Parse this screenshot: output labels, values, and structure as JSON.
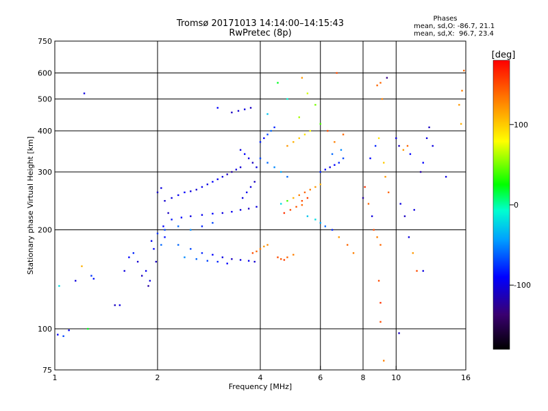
{
  "title": {
    "line1": "Tromsø 20171013 14:14:00–14:15:43",
    "line2": "RwPretec (8p)"
  },
  "phase_box": {
    "heading": "Phases",
    "line_o": "mean, sd,O: -86.7, 21.1",
    "line_x": "mean, sd,X:  96.7, 23.4"
  },
  "colorbar": {
    "label": "[deg]",
    "ticks": [
      {
        "value": 100,
        "label": "100"
      },
      {
        "value": 0,
        "label": "0"
      },
      {
        "value": -100,
        "label": "-100"
      }
    ],
    "range": [
      -180,
      180
    ]
  },
  "chart_data": {
    "type": "scatter",
    "xlabel": "Frequency [MHz]",
    "ylabel": "Stationary phase Virtual Height [km]",
    "xscale": "log",
    "yscale": "log",
    "xlim": [
      1,
      16
    ],
    "ylim": [
      75,
      750
    ],
    "xticks": [
      {
        "value": 1,
        "label": "1"
      },
      {
        "value": 2,
        "label": "2"
      },
      {
        "value": 4,
        "label": "4"
      },
      {
        "value": 6,
        "label": "6"
      },
      {
        "value": 8,
        "label": "8"
      },
      {
        "value": 10,
        "label": "10"
      },
      {
        "value": 16,
        "label": "16"
      }
    ],
    "xgrid": [
      2,
      4,
      6,
      8,
      10
    ],
    "yticks": [
      {
        "value": 75,
        "label": "75"
      },
      {
        "value": 100,
        "label": "100"
      },
      {
        "value": 200,
        "label": "200"
      },
      {
        "value": 300,
        "label": "300"
      },
      {
        "value": 400,
        "label": "400"
      },
      {
        "value": 500,
        "label": "500"
      },
      {
        "value": 600,
        "label": "600"
      },
      {
        "value": 750,
        "label": "750"
      }
    ],
    "ygrid": [
      100,
      200,
      300,
      400,
      500,
      600
    ],
    "grid": true,
    "color_value": "phase [deg]",
    "points": [
      [
        1.02,
        96,
        -90
      ],
      [
        1.06,
        95,
        -70
      ],
      [
        1.1,
        99,
        -95
      ],
      [
        1.03,
        135,
        -20
      ],
      [
        1.22,
        520,
        -100
      ],
      [
        1.15,
        140,
        -100
      ],
      [
        1.3,
        142,
        -85
      ],
      [
        1.28,
        145,
        -75
      ],
      [
        1.2,
        155,
        110
      ],
      [
        1.25,
        100,
        20
      ],
      [
        1.5,
        118,
        -110
      ],
      [
        1.55,
        118,
        -100
      ],
      [
        1.6,
        150,
        -100
      ],
      [
        1.65,
        165,
        -90
      ],
      [
        1.7,
        170,
        -80
      ],
      [
        1.75,
        160,
        -105
      ],
      [
        1.8,
        145,
        -110
      ],
      [
        1.85,
        150,
        -95
      ],
      [
        1.9,
        140,
        -100
      ],
      [
        1.95,
        175,
        -90
      ],
      [
        1.92,
        185,
        -95
      ],
      [
        2.0,
        195,
        -75
      ],
      [
        2.05,
        180,
        -60
      ],
      [
        2.1,
        190,
        -85
      ],
      [
        2.08,
        205,
        -90
      ],
      [
        1.98,
        160,
        -110
      ],
      [
        1.88,
        135,
        -120
      ],
      [
        2.0,
        260,
        -110
      ],
      [
        2.05,
        268,
        -100
      ],
      [
        2.1,
        245,
        -105
      ],
      [
        2.15,
        225,
        -110
      ],
      [
        2.2,
        250,
        -100
      ],
      [
        2.3,
        255,
        -95
      ],
      [
        2.4,
        260,
        -90
      ],
      [
        2.5,
        262,
        -100
      ],
      [
        2.6,
        265,
        -105
      ],
      [
        2.7,
        270,
        -95
      ],
      [
        2.8,
        275,
        -100
      ],
      [
        2.9,
        280,
        -90
      ],
      [
        3.0,
        285,
        -95
      ],
      [
        3.1,
        290,
        -100
      ],
      [
        3.2,
        295,
        -110
      ],
      [
        3.3,
        300,
        -120
      ],
      [
        3.4,
        305,
        -100
      ],
      [
        3.5,
        310,
        -105
      ],
      [
        2.2,
        215,
        -85
      ],
      [
        2.35,
        218,
        -90
      ],
      [
        2.5,
        220,
        -100
      ],
      [
        2.7,
        222,
        -95
      ],
      [
        2.9,
        224,
        -90
      ],
      [
        3.1,
        225,
        -100
      ],
      [
        3.3,
        227,
        -95
      ],
      [
        3.5,
        230,
        -100
      ],
      [
        3.7,
        232,
        -110
      ],
      [
        3.9,
        235,
        -100
      ],
      [
        2.1,
        200,
        -70
      ],
      [
        2.3,
        205,
        -60
      ],
      [
        2.5,
        200,
        -50
      ],
      [
        2.7,
        205,
        -80
      ],
      [
        2.9,
        210,
        -70
      ],
      [
        2.3,
        180,
        -60
      ],
      [
        2.5,
        175,
        -70
      ],
      [
        2.7,
        170,
        -80
      ],
      [
        2.9,
        168,
        -90
      ],
      [
        3.1,
        165,
        -100
      ],
      [
        3.3,
        163,
        -110
      ],
      [
        3.5,
        162,
        -100
      ],
      [
        3.7,
        161,
        -95
      ],
      [
        3.85,
        160,
        -105
      ],
      [
        2.4,
        165,
        -50
      ],
      [
        2.6,
        163,
        -60
      ],
      [
        2.8,
        161,
        -70
      ],
      [
        3.0,
        160,
        -80
      ],
      [
        3.2,
        158,
        -90
      ],
      [
        3.3,
        455,
        -110
      ],
      [
        3.45,
        460,
        -105
      ],
      [
        3.6,
        465,
        -100
      ],
      [
        3.75,
        470,
        -110
      ],
      [
        3.0,
        470,
        -90
      ],
      [
        3.5,
        350,
        -100
      ],
      [
        3.6,
        340,
        -90
      ],
      [
        3.7,
        330,
        -100
      ],
      [
        3.8,
        320,
        -110
      ],
      [
        3.9,
        310,
        -100
      ],
      [
        3.55,
        250,
        -100
      ],
      [
        3.65,
        260,
        -95
      ],
      [
        3.75,
        270,
        -100
      ],
      [
        3.85,
        280,
        -110
      ],
      [
        3.8,
        170,
        150
      ],
      [
        3.9,
        172,
        140
      ],
      [
        4.0,
        175,
        130
      ],
      [
        4.1,
        178,
        120
      ],
      [
        4.2,
        180,
        125
      ],
      [
        4.5,
        165,
        150
      ],
      [
        4.6,
        163,
        145
      ],
      [
        4.7,
        162,
        155
      ],
      [
        4.8,
        165,
        140
      ],
      [
        5.0,
        168,
        130
      ],
      [
        4.0,
        370,
        -80
      ],
      [
        4.1,
        380,
        -90
      ],
      [
        4.2,
        390,
        -70
      ],
      [
        4.3,
        400,
        -60
      ],
      [
        4.4,
        410,
        -80
      ],
      [
        4.0,
        330,
        -70
      ],
      [
        4.2,
        320,
        -60
      ],
      [
        4.4,
        310,
        -50
      ],
      [
        4.6,
        300,
        -40
      ],
      [
        4.8,
        290,
        -60
      ],
      [
        4.6,
        240,
        -20
      ],
      [
        4.8,
        245,
        40
      ],
      [
        5.0,
        250,
        110
      ],
      [
        5.2,
        255,
        130
      ],
      [
        5.4,
        260,
        140
      ],
      [
        5.6,
        265,
        130
      ],
      [
        5.8,
        270,
        120
      ],
      [
        6.0,
        275,
        110
      ],
      [
        5.3,
        245,
        150
      ],
      [
        5.5,
        250,
        155
      ],
      [
        4.7,
        225,
        160
      ],
      [
        4.9,
        230,
        150
      ],
      [
        5.1,
        235,
        145
      ],
      [
        5.3,
        238,
        140
      ],
      [
        4.8,
        360,
        120
      ],
      [
        5.0,
        370,
        110
      ],
      [
        5.2,
        380,
        100
      ],
      [
        5.4,
        390,
        90
      ],
      [
        5.6,
        400,
        80
      ],
      [
        5.2,
        440,
        60
      ],
      [
        5.5,
        520,
        70
      ],
      [
        5.8,
        480,
        50
      ],
      [
        6.0,
        420,
        40
      ],
      [
        5.3,
        580,
        120
      ],
      [
        4.5,
        560,
        20
      ],
      [
        4.2,
        450,
        -30
      ],
      [
        4.8,
        500,
        -10
      ],
      [
        6.0,
        300,
        -80
      ],
      [
        6.2,
        305,
        -90
      ],
      [
        6.4,
        310,
        -100
      ],
      [
        6.6,
        315,
        -90
      ],
      [
        6.8,
        320,
        -80
      ],
      [
        7.0,
        330,
        -70
      ],
      [
        6.5,
        340,
        -60
      ],
      [
        6.9,
        350,
        -50
      ],
      [
        6.6,
        370,
        130
      ],
      [
        6.3,
        400,
        150
      ],
      [
        6.7,
        600,
        150
      ],
      [
        7.0,
        390,
        140
      ],
      [
        5.5,
        220,
        -30
      ],
      [
        5.8,
        215,
        -20
      ],
      [
        6.0,
        210,
        -40
      ],
      [
        6.2,
        205,
        -60
      ],
      [
        6.5,
        200,
        -80
      ],
      [
        6.8,
        190,
        120
      ],
      [
        7.2,
        180,
        140
      ],
      [
        7.5,
        170,
        130
      ],
      [
        8.0,
        250,
        -120
      ],
      [
        8.1,
        270,
        160
      ],
      [
        8.3,
        240,
        140
      ],
      [
        8.5,
        220,
        -100
      ],
      [
        8.6,
        200,
        150
      ],
      [
        8.8,
        190,
        130
      ],
      [
        9.0,
        180,
        140
      ],
      [
        8.4,
        330,
        -90
      ],
      [
        8.7,
        360,
        -80
      ],
      [
        8.9,
        380,
        90
      ],
      [
        9.1,
        500,
        130
      ],
      [
        9.0,
        560,
        140
      ],
      [
        9.4,
        580,
        -130
      ],
      [
        8.8,
        550,
        140
      ],
      [
        9.2,
        320,
        100
      ],
      [
        9.3,
        290,
        120
      ],
      [
        9.5,
        260,
        140
      ],
      [
        8.9,
        140,
        150
      ],
      [
        9.0,
        120,
        160
      ],
      [
        9.0,
        105,
        150
      ],
      [
        9.2,
        80,
        130
      ],
      [
        10.0,
        380,
        -100
      ],
      [
        10.2,
        360,
        -110
      ],
      [
        10.5,
        350,
        120
      ],
      [
        10.8,
        360,
        140
      ],
      [
        11.0,
        340,
        -90
      ],
      [
        10.3,
        240,
        -100
      ],
      [
        10.6,
        220,
        -110
      ],
      [
        10.9,
        190,
        -100
      ],
      [
        11.2,
        170,
        120
      ],
      [
        11.5,
        150,
        150
      ],
      [
        11.8,
        300,
        -120
      ],
      [
        12.0,
        320,
        -90
      ],
      [
        12.3,
        380,
        -100
      ],
      [
        12.5,
        410,
        -110
      ],
      [
        12.8,
        360,
        -100
      ],
      [
        12.0,
        150,
        -100
      ],
      [
        11.3,
        230,
        -100
      ],
      [
        10.2,
        97,
        -110
      ],
      [
        14.0,
        290,
        -100
      ],
      [
        15.3,
        480,
        120
      ],
      [
        15.6,
        530,
        130
      ],
      [
        15.8,
        610,
        140
      ],
      [
        15.5,
        420,
        110
      ]
    ]
  }
}
